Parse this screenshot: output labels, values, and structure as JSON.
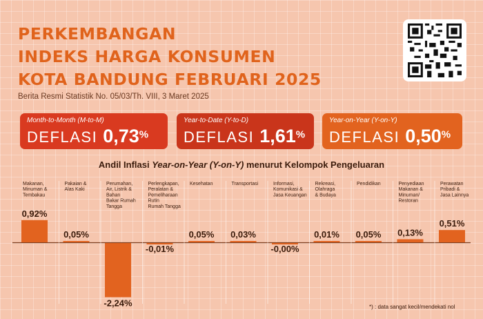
{
  "header": {
    "title_line1": "PERKEMBANGAN",
    "title_line2": "INDEKS HARGA KONSUMEN",
    "title_line3": "KOTA BANDUNG FEBRUARI 2025",
    "subtitle": "Berita Resmi Statistik No. 05/03/Th. VIII, 3 Maret 2025"
  },
  "cards": [
    {
      "label": "Month-to-Month (M-to-M)",
      "word": "DEFLASI",
      "value": "0,73",
      "unit": "%",
      "color": "#d93a20"
    },
    {
      "label": "Year-to-Date (Y-to-D)",
      "word": "DEFLASI",
      "value": "1,61",
      "unit": "%",
      "color": "#c9351b"
    },
    {
      "label": "Year-on-Year (Y-on-Y)",
      "word": "DEFLASI",
      "value": "0,50",
      "unit": "%",
      "color": "#e2631f"
    }
  ],
  "chart_title": {
    "prefix": "Andil Inflasi ",
    "italic": "Year-on-Year (Y-on-Y)",
    "suffix": " menurut Kelompok Pengeluaran"
  },
  "chart_data": {
    "type": "bar",
    "title": "Andil Inflasi Year-on-Year (Y-on-Y) menurut Kelompok Pengeluaran",
    "categories": [
      [
        "Makanan,",
        "Minuman &",
        "Tembakau"
      ],
      [
        "Pakaian &",
        "Alas Kaki"
      ],
      [
        "Perumahan,",
        "Air, Listrik &",
        "Bahan",
        "Bakar Rumah",
        "Tangga"
      ],
      [
        "Perlengkapan,",
        "Peralatan &",
        "Pemeliharaan",
        "Rutin",
        "Rumah Tangga"
      ],
      [
        "Kesehatan"
      ],
      [
        "Transportasi"
      ],
      [
        "Informasi,",
        "Komunikasi &",
        "Jasa Keuangan"
      ],
      [
        "Rekreasi,",
        "Olahraga",
        "& Budaya"
      ],
      [
        "Pendidikan"
      ],
      [
        "Penyediaan",
        "Makanan &",
        "Minuman/",
        "Restoran"
      ],
      [
        "Perawatan",
        "Pribadi &",
        "Jasa Lainnya"
      ]
    ],
    "values": [
      0.92,
      0.05,
      -2.24,
      -0.01,
      0.05,
      0.03,
      -0.001,
      0.01,
      0.05,
      0.13,
      0.51
    ],
    "labels": [
      "0,92%",
      "0,05%",
      "-2,24%",
      "-0,01%",
      "0,05%",
      "0,03%",
      "-0,00%",
      "0,01%",
      "0,05%",
      "0,13%",
      "0,51%"
    ],
    "bar_color": "#e2631f",
    "baseline_color": "#7a3a1a"
  },
  "footnote": "*) : data sangat kecil/mendekati nol"
}
